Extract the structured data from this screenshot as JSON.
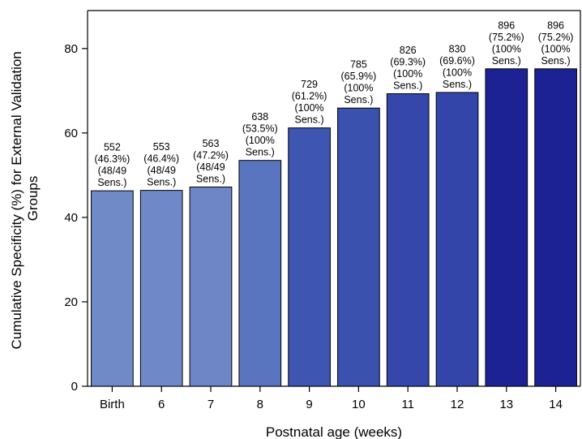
{
  "chart_data": {
    "type": "bar",
    "title": "",
    "xlabel": "Postnatal age (weeks)",
    "ylabel_lines": [
      "Cumulative Specificity (%) for External Validation",
      "Groups"
    ],
    "ylim": [
      0,
      89
    ],
    "yticks": [
      0,
      20,
      40,
      60,
      80
    ],
    "grid": false,
    "legend": "none",
    "categories": [
      "Birth",
      "6",
      "7",
      "8",
      "9",
      "10",
      "11",
      "12",
      "13",
      "14"
    ],
    "values": [
      46.3,
      46.4,
      47.2,
      53.5,
      61.2,
      65.9,
      69.3,
      69.6,
      75.2,
      75.2
    ],
    "bar_colors": [
      "#7089c7",
      "#6f88c7",
      "#6e86c6",
      "#5a75c0",
      "#3e55b1",
      "#3b51ae",
      "#3547aa",
      "#3345a9",
      "#1c2294",
      "#1c2294"
    ],
    "labels": [
      [
        "552",
        "(46.3%)",
        "(48/49",
        "Sens.)"
      ],
      [
        "553",
        "(46.4%)",
        "(48/49",
        "Sens.)"
      ],
      [
        "563",
        "(47.2%)",
        "(48/49",
        "Sens.)"
      ],
      [
        "638",
        "(53.5%)",
        "(100%",
        "Sens.)"
      ],
      [
        "729",
        "(61.2%)",
        "(100%",
        "Sens.)"
      ],
      [
        "785",
        "(65.9%)",
        "(100%",
        "Sens.)"
      ],
      [
        "826",
        "(69.3%)",
        "(100%",
        "Sens.)"
      ],
      [
        "830",
        "(69.6%)",
        "(100%",
        "Sens.)"
      ],
      [
        "896",
        "(75.2%)",
        "(100%",
        "Sens.)"
      ],
      [
        "896",
        "(75.2%)",
        "(100%",
        "Sens.)"
      ]
    ]
  }
}
